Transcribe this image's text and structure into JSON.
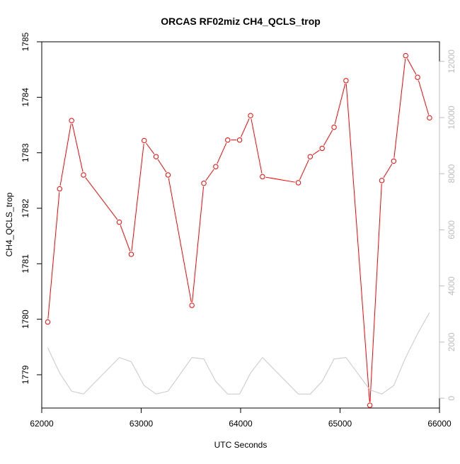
{
  "chart_data": {
    "type": "line",
    "title": "ORCAS RF02miz CH4_QCLS_trop",
    "xlabel": "UTC Seconds",
    "ylabel": "CH4_QCLS_trop",
    "xlim": [
      62000,
      66000
    ],
    "ylim": [
      1778.4,
      1785.0
    ],
    "y2lim": [
      -350,
      12700
    ],
    "x_ticks": [
      62000,
      63000,
      64000,
      65000,
      66000
    ],
    "y_ticks": [
      1779,
      1780,
      1781,
      1782,
      1783,
      1784,
      1785
    ],
    "y2_ticks": [
      0,
      2000,
      4000,
      6000,
      8000,
      10000,
      12000
    ],
    "series": [
      {
        "color": "#ff0000",
        "axis": "left",
        "marker": "open-circle",
        "x": [
          62060,
          62180,
          62300,
          62420,
          62780,
          62900,
          63030,
          63150,
          63270,
          63510,
          63630,
          63750,
          63870,
          63990,
          64100,
          64220,
          64580,
          64700,
          64820,
          64940,
          65060,
          65300,
          65420,
          65540,
          65660,
          65780,
          65900
        ],
        "y": [
          1779.95,
          1782.35,
          1783.58,
          1782.6,
          1781.75,
          1781.17,
          1783.22,
          1782.93,
          1782.6,
          1780.25,
          1782.45,
          1782.75,
          1783.23,
          1783.23,
          1783.67,
          1782.57,
          1782.46,
          1782.93,
          1783.08,
          1783.46,
          1784.3,
          1778.45,
          1782.5,
          1782.85,
          1784.75,
          1784.36,
          1783.63
        ]
      },
      {
        "color": "#c8c8c8",
        "axis": "right",
        "marker": "none",
        "x": [
          62060,
          62180,
          62300,
          62420,
          62780,
          62900,
          63030,
          63150,
          63270,
          63510,
          63630,
          63750,
          63870,
          63990,
          64100,
          64220,
          64580,
          64700,
          64820,
          64940,
          65060,
          65300,
          65420,
          65540,
          65660,
          65780,
          65900
        ],
        "y": [
          1800,
          900,
          250,
          150,
          1450,
          1300,
          450,
          150,
          250,
          1450,
          1400,
          600,
          150,
          150,
          900,
          1450,
          150,
          150,
          600,
          1400,
          1450,
          300,
          150,
          450,
          1450,
          2300,
          3050
        ]
      }
    ]
  }
}
